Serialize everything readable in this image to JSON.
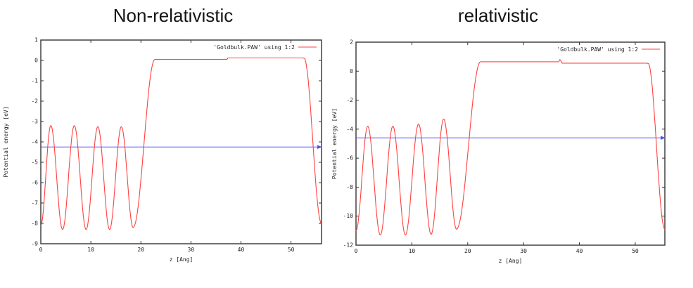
{
  "chart_data": [
    {
      "type": "line",
      "title": "Non-relativistic",
      "legend_label": "'Goldbulk.PAW' using 1:2",
      "xlabel": "z [Ang]",
      "ylabel": "Potential energy [eV]",
      "xlim": [
        0,
        56.1
      ],
      "ylim": [
        -9,
        1
      ],
      "xticks": [
        0,
        10,
        20,
        30,
        40,
        50
      ],
      "yticks": [
        1,
        0,
        -1,
        -2,
        -3,
        -4,
        -5,
        -6,
        -7,
        -8,
        -9
      ],
      "series_color": "#ff4040",
      "fermi_color": "#5252f0",
      "fermi_level_eV": -4.25,
      "potential_curve": {
        "oscillation_extrema": [
          [
            0,
            -8.1
          ],
          [
            2.0,
            -3.2
          ],
          [
            4.35,
            -8.3
          ],
          [
            6.7,
            -3.2
          ],
          [
            9.05,
            -8.3
          ],
          [
            11.4,
            -3.25
          ],
          [
            13.75,
            -8.3
          ],
          [
            16.1,
            -3.25
          ],
          [
            18.45,
            -8.2
          ],
          [
            22.8,
            0.05
          ]
        ],
        "plateau": {
          "end": 52.6,
          "value_before": 0.05,
          "value_after": 0.12,
          "step_x": 37.3,
          "spike": 0
        },
        "end_point": [
          56.1,
          -8.0
        ]
      }
    },
    {
      "type": "line",
      "title": "relativistic",
      "legend_label": "'Goldbulk.PAW' using 1:2",
      "xlabel": "z [Ang]",
      "ylabel": "Potential energy [eV]",
      "xlim": [
        0,
        55.3
      ],
      "ylim": [
        -12,
        2
      ],
      "xticks": [
        0,
        10,
        20,
        30,
        40,
        50
      ],
      "yticks": [
        2,
        0,
        -2,
        -4,
        -6,
        -8,
        -10,
        -12
      ],
      "series_color": "#ff4040",
      "fermi_color": "#5252f0",
      "fermi_level_eV": -4.6,
      "potential_curve": {
        "oscillation_extrema": [
          [
            0,
            -11.0
          ],
          [
            2.1,
            -3.8
          ],
          [
            4.35,
            -11.3
          ],
          [
            6.6,
            -3.8
          ],
          [
            8.85,
            -11.3
          ],
          [
            11.2,
            -3.65
          ],
          [
            13.45,
            -11.25
          ],
          [
            15.7,
            -3.3
          ],
          [
            18.0,
            -10.9
          ],
          [
            22.3,
            0.65
          ]
        ],
        "plateau": {
          "end": 52.3,
          "value_before": 0.65,
          "value_after": 0.55,
          "step_x": 36.6,
          "spike": 0.15
        },
        "end_point": [
          55.3,
          -10.9
        ]
      }
    }
  ]
}
